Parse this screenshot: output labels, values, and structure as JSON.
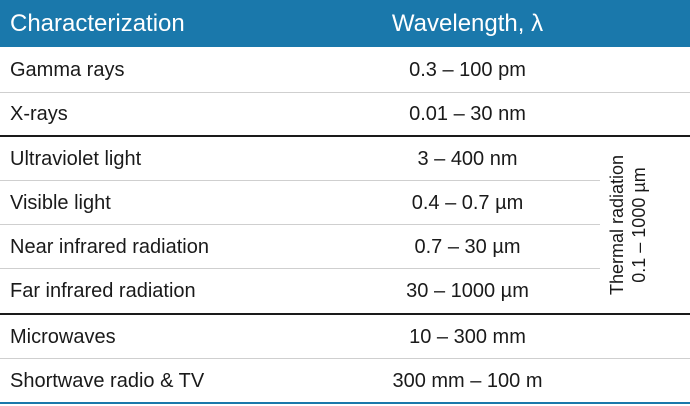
{
  "header": {
    "characterization": "Characterization",
    "wavelength": "Wavelength, λ"
  },
  "rows": [
    {
      "name": "Gamma rays",
      "wavelength": "0.3 – 100 pm"
    },
    {
      "name": "X-rays",
      "wavelength": "0.01 – 30 nm"
    },
    {
      "name": "Ultraviolet light",
      "wavelength": "3 – 400 nm"
    },
    {
      "name": "Visible light",
      "wavelength": "0.4 – 0.7 µm"
    },
    {
      "name": "Near infrared radiation",
      "wavelength": "0.7 – 30 µm"
    },
    {
      "name": "Far infrared radiation",
      "wavelength": "30 – 1000 µm"
    },
    {
      "name": "Microwaves",
      "wavelength": "10 – 300 mm"
    },
    {
      "name": "Shortwave radio & TV",
      "wavelength": "300 mm – 100 m"
    }
  ],
  "thermal": {
    "line1": "Thermal radiation",
    "line2": "0.1 – 1000 µm"
  },
  "colors": {
    "header_bg": "#1a78ab",
    "header_text": "#ffffff"
  }
}
